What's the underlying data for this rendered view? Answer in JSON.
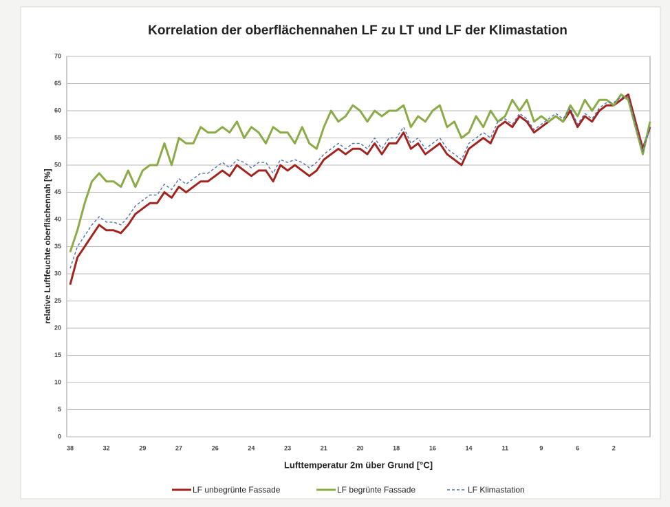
{
  "chart_data": {
    "type": "line",
    "title": "Korrelation der oberflächennahen LF zu LT und LF der Klimastation",
    "x_label": "Lufttemperatur 2m über Grund [°C]",
    "y_label": "relative Luftfeuchte oberflächennah [%]",
    "categories": [
      "38",
      null,
      null,
      null,
      null,
      "32",
      null,
      null,
      null,
      null,
      "29",
      null,
      null,
      null,
      null,
      "27",
      null,
      null,
      null,
      null,
      "26",
      null,
      null,
      null,
      null,
      "24",
      null,
      null,
      null,
      null,
      "23",
      null,
      null,
      null,
      null,
      "21",
      null,
      null,
      null,
      null,
      "20",
      null,
      null,
      null,
      null,
      "18",
      null,
      null,
      null,
      null,
      "16",
      null,
      null,
      null,
      null,
      "14",
      null,
      null,
      null,
      null,
      "11",
      null,
      null,
      null,
      null,
      "9",
      null,
      null,
      null,
      null,
      "6",
      null,
      null,
      null,
      null,
      "2",
      null,
      null,
      null,
      null,
      null
    ],
    "series": [
      {
        "name": "LF unbegrünte Fassade",
        "color": "#a3231f",
        "dash": false,
        "values": [
          28,
          33,
          35,
          37,
          39,
          38,
          38,
          37.5,
          39,
          41,
          42,
          43,
          43,
          45,
          44,
          46,
          45,
          46,
          47,
          47,
          48,
          49,
          48,
          50,
          49,
          48,
          49,
          49,
          47,
          50,
          49,
          50,
          49,
          48,
          49,
          51,
          52,
          53,
          52,
          53,
          53,
          52,
          54,
          52,
          54,
          54,
          56,
          53,
          54,
          52,
          53,
          54,
          52,
          51,
          50,
          53,
          54,
          55,
          54,
          57,
          58,
          57,
          59,
          58,
          56,
          57,
          58,
          59,
          58,
          60,
          57,
          59,
          58,
          60,
          61,
          61,
          62,
          63,
          58,
          53,
          57
        ]
      },
      {
        "name": "LF begrünte Fassade",
        "color": "#8aab45",
        "dash": false,
        "values": [
          34,
          38,
          43,
          47,
          48.5,
          47,
          47,
          46,
          49,
          46,
          49,
          50,
          50,
          54,
          50,
          55,
          54,
          54,
          57,
          56,
          56,
          57,
          56,
          58,
          55,
          57,
          56,
          54,
          57,
          56,
          56,
          54,
          57,
          54,
          53,
          57,
          60,
          58,
          59,
          61,
          60,
          58,
          60,
          59,
          60,
          60,
          61,
          57,
          59,
          58,
          60,
          61,
          57,
          58,
          55,
          56,
          59,
          57,
          60,
          58,
          59,
          62,
          60,
          62,
          58,
          59,
          58,
          59,
          58,
          61,
          59,
          62,
          60,
          62,
          62,
          61,
          63,
          62,
          57,
          52,
          58
        ]
      },
      {
        "name": "LF Klimastation",
        "color": "#4f6fb0",
        "dash": true,
        "values": [
          31,
          35,
          37,
          39,
          40.5,
          39.5,
          39.5,
          39,
          40.5,
          42.5,
          43.5,
          44.5,
          44.5,
          46.5,
          45.5,
          47.5,
          46.5,
          47.5,
          48.5,
          48.5,
          49.5,
          50.5,
          49.5,
          51,
          50.5,
          49.5,
          50.5,
          50.5,
          48.5,
          51,
          50.5,
          51,
          50.5,
          49.5,
          50.5,
          52,
          53,
          54,
          53,
          54,
          54,
          53,
          55,
          53,
          55,
          55,
          57,
          54,
          55,
          53,
          54,
          55,
          53,
          52,
          51,
          54,
          55,
          56,
          55,
          58,
          58.5,
          57.5,
          59.5,
          58.5,
          56.5,
          57.5,
          58.5,
          59.5,
          58.5,
          60.5,
          57.5,
          59.5,
          58.5,
          60.5,
          61.5,
          61.5,
          62.5,
          62.5,
          57.5,
          52.5,
          57
        ]
      }
    ],
    "ylim": [
      0,
      70
    ],
    "yticks": [
      0,
      5,
      10,
      15,
      20,
      25,
      30,
      35,
      40,
      45,
      50,
      55,
      60,
      65,
      70
    ],
    "grid": true,
    "legend": "bottom"
  }
}
